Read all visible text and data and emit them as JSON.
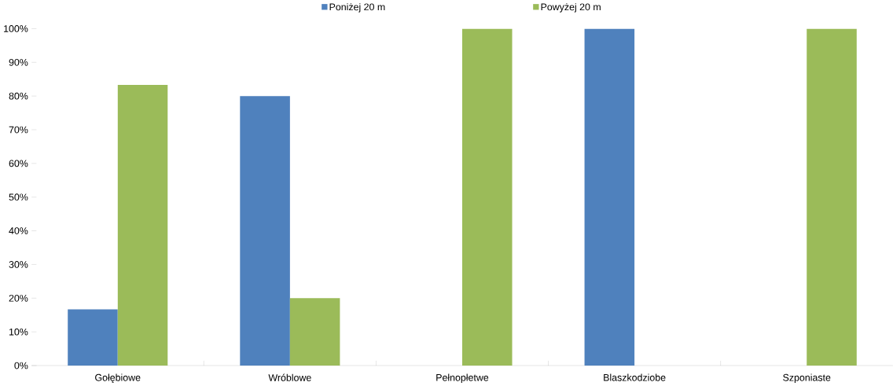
{
  "chart_data": {
    "type": "bar",
    "categories": [
      "Gołębiowe",
      "Wróblowe",
      "Pełnopłetwe",
      "Blaszkodziobe",
      "Szponiaste"
    ],
    "series": [
      {
        "name": "Poniżej 20 m",
        "color": "#4f81bd",
        "values": [
          16.7,
          80,
          0,
          100,
          0
        ]
      },
      {
        "name": "Powyżej 20 m",
        "color": "#9bbb59",
        "values": [
          83.3,
          20,
          100,
          0,
          100
        ]
      }
    ],
    "ylim": [
      0,
      100
    ],
    "yticks": [
      {
        "value": 0,
        "label": "0%"
      },
      {
        "value": 10,
        "label": "10%"
      },
      {
        "value": 20,
        "label": "20%"
      },
      {
        "value": 30,
        "label": "30%"
      },
      {
        "value": 40,
        "label": "40%"
      },
      {
        "value": 50,
        "label": "50%"
      },
      {
        "value": 60,
        "label": "60%"
      },
      {
        "value": 70,
        "label": "70%"
      },
      {
        "value": 80,
        "label": "80%"
      },
      {
        "value": 90,
        "label": "90%"
      },
      {
        "value": 100,
        "label": "100%"
      }
    ],
    "legend": "top",
    "grid": false
  }
}
